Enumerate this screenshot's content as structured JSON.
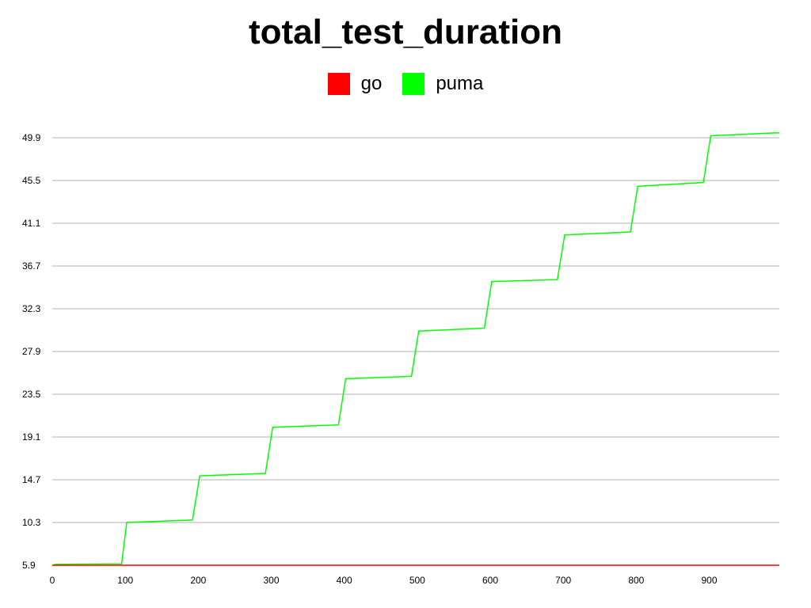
{
  "chart_data": {
    "type": "line",
    "title": "total_test_duration",
    "xlabel": "",
    "ylabel": "",
    "xlim": [
      0,
      996
    ],
    "ylim": [
      5.9,
      51.6
    ],
    "x_ticks": [
      0,
      100,
      200,
      300,
      400,
      500,
      600,
      700,
      800,
      900
    ],
    "y_ticks": [
      5.9,
      10.3,
      14.7,
      19.1,
      23.5,
      27.9,
      32.3,
      36.7,
      41.1,
      45.5,
      49.9
    ],
    "grid": true,
    "legend_position": "top-center",
    "series": [
      {
        "name": "go",
        "color": "#ff0000",
        "x": [
          0,
          100,
          200,
          300,
          400,
          500,
          600,
          700,
          800,
          900,
          996
        ],
        "y": [
          5.9,
          5.9,
          5.9,
          5.9,
          5.9,
          5.9,
          5.9,
          5.9,
          5.9,
          5.9,
          5.9
        ]
      },
      {
        "name": "puma",
        "color": "#00ff00",
        "x": [
          0,
          5,
          95,
          102,
          192,
          202,
          292,
          302,
          392,
          402,
          492,
          502,
          592,
          602,
          692,
          702,
          792,
          802,
          892,
          902,
          990,
          996
        ],
        "y": [
          5.9,
          6.0,
          6.05,
          10.3,
          10.55,
          15.1,
          15.35,
          20.1,
          20.35,
          25.1,
          25.35,
          30.0,
          30.3,
          35.1,
          35.3,
          39.9,
          40.2,
          44.9,
          45.3,
          50.1,
          50.4,
          50.4
        ]
      }
    ]
  }
}
